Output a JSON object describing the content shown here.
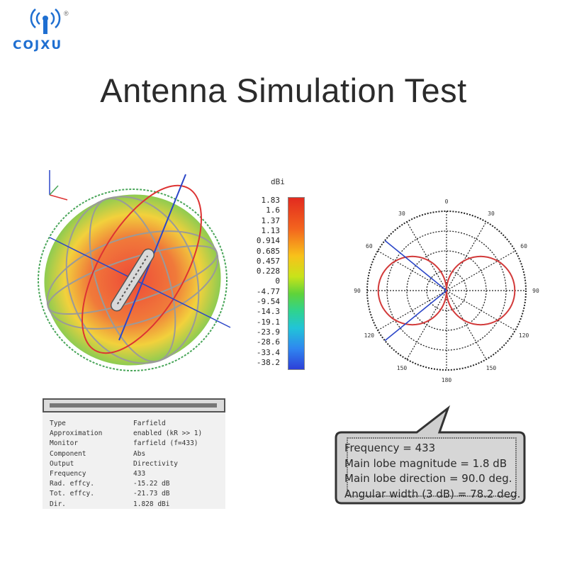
{
  "brand": {
    "name": "COJXU",
    "registered": "®",
    "color": "#1f6fd1"
  },
  "title": "Antenna Simulation Test",
  "colors": {
    "lobe_hot": "#e8473a",
    "lobe_mid": "#f6d23a",
    "lobe_cool": "#5bc85a",
    "polar_curve": "#d23a3a",
    "polar_axis": "#2b46c8"
  },
  "scale": {
    "unit": "dBi",
    "labels": [
      "1.83",
      "1.6",
      "1.37",
      "1.13",
      "0.914",
      "0.685",
      "0.457",
      "0.228",
      "0",
      "-4.77",
      "-9.54",
      "-14.3",
      "-19.1",
      "-23.9",
      "-28.6",
      "-33.4",
      "-38.2"
    ]
  },
  "polar_plot": {
    "angle_labels": [
      "0",
      "30",
      "60",
      "90",
      "120",
      "150",
      "180",
      "150",
      "120",
      "90",
      "60",
      "30"
    ],
    "main_lobe_direction_deg": 90,
    "angular_width_3db_deg": 78.2
  },
  "info_table": {
    "rows": [
      {
        "key": "Type",
        "value": "Farfield"
      },
      {
        "key": "Approximation",
        "value": "enabled (kR >> 1)"
      },
      {
        "key": "Monitor",
        "value": "farfield (f=433)"
      },
      {
        "key": "Component",
        "value": "Abs"
      },
      {
        "key": "Output",
        "value": "Directivity"
      },
      {
        "key": "Frequency",
        "value": "433"
      },
      {
        "key": "Rad. effcy.",
        "value": "-15.22 dB"
      },
      {
        "key": "Tot. effcy.",
        "value": "-21.73 dB"
      },
      {
        "key": "Dir.",
        "value": "1.828 dBi"
      }
    ]
  },
  "summary": {
    "lines": [
      "Frequency = 433",
      "Main lobe magnitude = 1.8 dB",
      "Main lobe direction = 90.0 deg.",
      "Angular width (3 dB) = 78.2 deg."
    ]
  }
}
